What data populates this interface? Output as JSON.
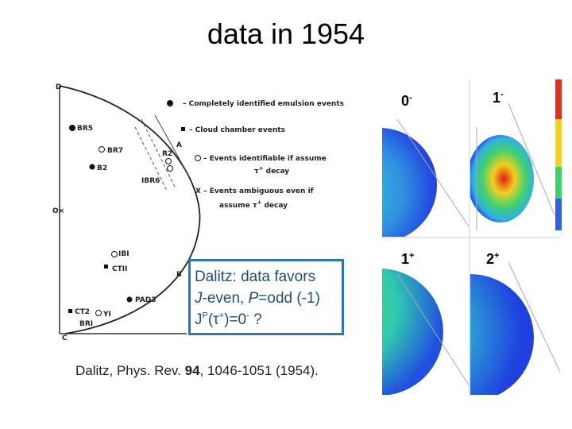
{
  "title": "data in 1954",
  "figure": {
    "axis_labels": {
      "top": "D",
      "middle": "O×",
      "bottom": "C",
      "a": "A",
      "b": "B",
      "r2": "R2"
    },
    "points": [
      "BR5",
      "BR7",
      "B2",
      "IBR6",
      "IBI",
      "CTII",
      "PAD3",
      "CT2",
      "YI",
      "BRI"
    ],
    "legend": [
      {
        "text": "Completely identified emulsion events"
      },
      {
        "text": "Cloud chamber events"
      },
      {
        "text": "Events identifiable if assume",
        "tau": "τ",
        "sup": "+",
        "rest": "decay"
      },
      {
        "symbol": "X",
        "text": "Events ambiguous even if",
        "pre": "assume",
        "tau": "τ",
        "sup": "+",
        "rest": "decay"
      }
    ]
  },
  "box": {
    "line1": "Dalitz:  data favors",
    "line2": {
      "j": "J",
      "a": "-even, ",
      "p": "P",
      "b": "=odd (-1)"
    },
    "line3": {
      "j": "J",
      "sup1": "P",
      "a": "(τ",
      "sup2": "+",
      "b": ")=0",
      "sup3": "-",
      "c": " ?"
    }
  },
  "citation": {
    "a": "Dalitz, Phys. Rev. ",
    "vol": "94",
    "b": ", 1046-1051 (1954)."
  },
  "panels": [
    {
      "main": "0",
      "sup": "-"
    },
    {
      "main": "1",
      "sup": "-"
    },
    {
      "main": "1",
      "sup": "+"
    },
    {
      "main": "2",
      "sup": "+"
    }
  ]
}
